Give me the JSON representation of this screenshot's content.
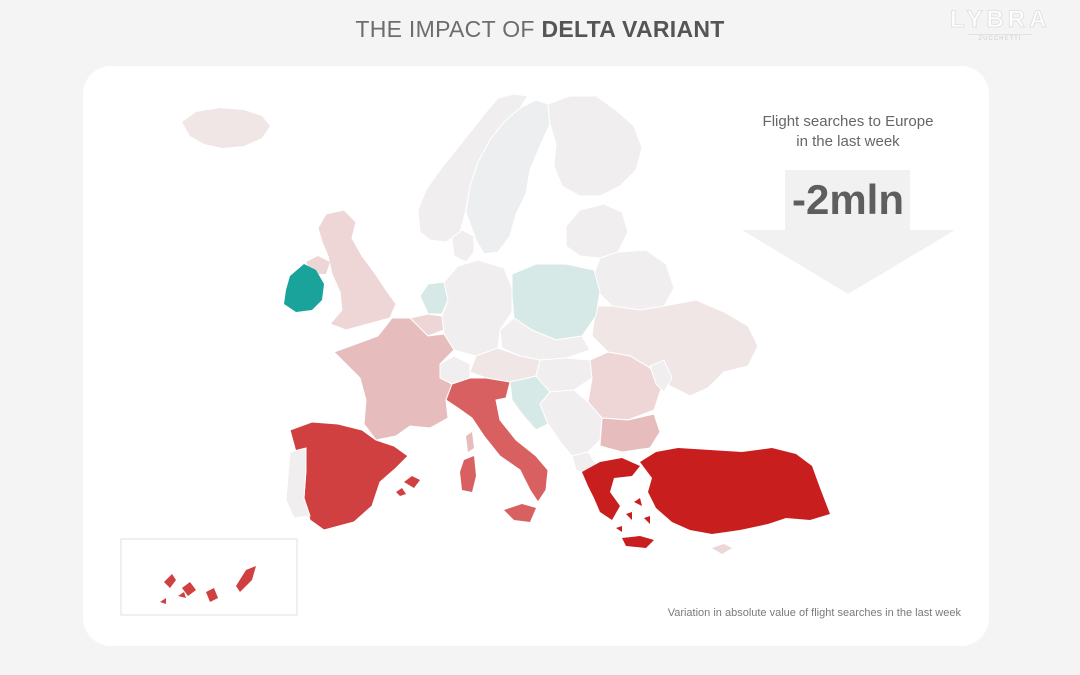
{
  "header": {
    "title_light": "THE IMPACT OF",
    "title_bold": "DELTA VARIANT"
  },
  "logo": {
    "name": "LYBRA",
    "subtitle": "ZUCCHETTI"
  },
  "stat": {
    "label_line1": "Flight searches to Europe",
    "label_line2": "in the last week",
    "value": "-2mln",
    "arrow_icon": "down-arrow-icon",
    "arrow_color": "#f0f0f0"
  },
  "footnote": "Variation in absolute value of flight searches in the last week",
  "map": {
    "legend": "diverging color scale: deep red = largest decrease, teal = increase",
    "colors": {
      "strong_decrease": "#c81e1e",
      "high_decrease": "#d04040",
      "medium_decrease": "#d96060",
      "moderate_decrease": "#e6bcbc",
      "light_decrease": "#efd6d6",
      "slight_decrease": "#f1e6e6",
      "neutral": "#f0eeee",
      "slight_increase": "#d7e9e6",
      "increase": "#1aa39a"
    },
    "regions": [
      {
        "name": "Iceland",
        "level": "slight_decrease"
      },
      {
        "name": "Norway",
        "level": "neutral"
      },
      {
        "name": "Sweden",
        "level": "neutral"
      },
      {
        "name": "Finland",
        "level": "neutral"
      },
      {
        "name": "United Kingdom",
        "level": "light_decrease"
      },
      {
        "name": "Ireland",
        "level": "increase"
      },
      {
        "name": "Netherlands",
        "level": "slight_increase"
      },
      {
        "name": "Germany",
        "level": "neutral"
      },
      {
        "name": "Poland",
        "level": "slight_increase"
      },
      {
        "name": "France",
        "level": "moderate_decrease"
      },
      {
        "name": "Spain",
        "level": "high_decrease"
      },
      {
        "name": "Portugal",
        "level": "neutral"
      },
      {
        "name": "Italy",
        "level": "medium_decrease"
      },
      {
        "name": "Croatia",
        "level": "slight_increase"
      },
      {
        "name": "Romania",
        "level": "light_decrease"
      },
      {
        "name": "Bulgaria",
        "level": "moderate_decrease"
      },
      {
        "name": "Ukraine",
        "level": "slight_decrease"
      },
      {
        "name": "Greece",
        "level": "strong_decrease"
      },
      {
        "name": "Turkey",
        "level": "strong_decrease"
      },
      {
        "name": "Canary Islands",
        "level": "high_decrease"
      }
    ]
  }
}
